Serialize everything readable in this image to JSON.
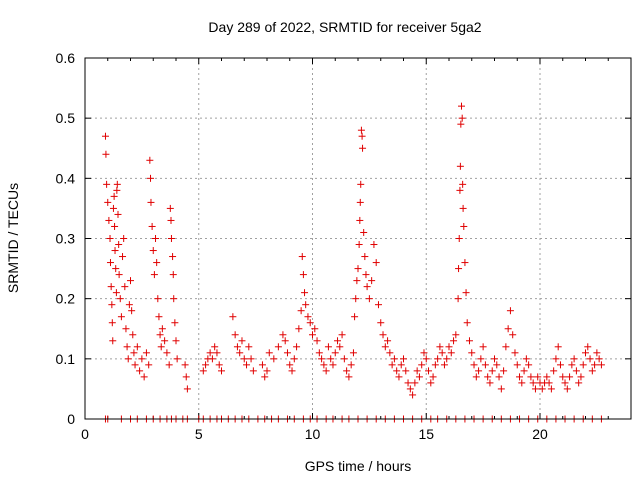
{
  "chart_data": {
    "type": "scatter",
    "title": "Day 289 of 2022, SRMTID for receiver 5ga2",
    "xlabel": "GPS time / hours",
    "ylabel": "SRMTID / TECUs",
    "xlim": [
      0,
      24
    ],
    "ylim": [
      0,
      0.6
    ],
    "x_ticks": [
      0,
      5,
      10,
      15,
      20
    ],
    "y_ticks": [
      0,
      0.1,
      0.2,
      0.3,
      0.4,
      0.5,
      0.6
    ],
    "x_tick_labels": [
      "0",
      "5",
      "10",
      "15",
      "20"
    ],
    "y_tick_labels": [
      "0",
      "0.1",
      "0.2",
      "0.3",
      "0.4",
      "0.5",
      "0.6"
    ],
    "grid": true,
    "marker": "plus",
    "color": "#e00000",
    "series": [
      {
        "name": "SRMTID",
        "points": [
          [
            0.9,
            0.47
          ],
          [
            0.92,
            0.44
          ],
          [
            0.95,
            0.39
          ],
          [
            1.0,
            0.36
          ],
          [
            1.05,
            0.33
          ],
          [
            1.1,
            0.3
          ],
          [
            1.12,
            0.26
          ],
          [
            1.15,
            0.22
          ],
          [
            1.18,
            0.19
          ],
          [
            1.2,
            0.16
          ],
          [
            1.22,
            0.13
          ],
          [
            1.25,
            0.35
          ],
          [
            1.28,
            0.37
          ],
          [
            1.3,
            0.32
          ],
          [
            1.32,
            0.28
          ],
          [
            1.35,
            0.25
          ],
          [
            1.38,
            0.21
          ],
          [
            1.4,
            0.38
          ],
          [
            1.42,
            0.39
          ],
          [
            1.45,
            0.34
          ],
          [
            1.48,
            0.29
          ],
          [
            1.5,
            0.24
          ],
          [
            1.55,
            0.2
          ],
          [
            1.6,
            0.17
          ],
          [
            1.65,
            0.27
          ],
          [
            1.7,
            0.3
          ],
          [
            1.75,
            0.22
          ],
          [
            1.8,
            0.15
          ],
          [
            1.85,
            0.12
          ],
          [
            1.9,
            0.1
          ],
          [
            1.95,
            0.19
          ],
          [
            2.0,
            0.23
          ],
          [
            2.05,
            0.18
          ],
          [
            2.1,
            0.14
          ],
          [
            2.15,
            0.11
          ],
          [
            2.2,
            0.09
          ],
          [
            2.3,
            0.12
          ],
          [
            2.4,
            0.08
          ],
          [
            2.5,
            0.1
          ],
          [
            2.6,
            0.07
          ],
          [
            2.7,
            0.11
          ],
          [
            2.8,
            0.09
          ],
          [
            2.85,
            0.43
          ],
          [
            2.88,
            0.4
          ],
          [
            2.9,
            0.36
          ],
          [
            2.95,
            0.32
          ],
          [
            3.0,
            0.28
          ],
          [
            3.05,
            0.24
          ],
          [
            3.1,
            0.3
          ],
          [
            3.15,
            0.26
          ],
          [
            3.2,
            0.2
          ],
          [
            3.25,
            0.17
          ],
          [
            3.3,
            0.14
          ],
          [
            3.35,
            0.12
          ],
          [
            3.4,
            0.15
          ],
          [
            3.5,
            0.13
          ],
          [
            3.6,
            0.11
          ],
          [
            3.7,
            0.09
          ],
          [
            3.75,
            0.35
          ],
          [
            3.78,
            0.33
          ],
          [
            3.8,
            0.3
          ],
          [
            3.85,
            0.27
          ],
          [
            3.88,
            0.24
          ],
          [
            3.9,
            0.2
          ],
          [
            3.95,
            0.16
          ],
          [
            4.0,
            0.13
          ],
          [
            4.05,
            0.1
          ],
          [
            4.4,
            0.09
          ],
          [
            4.45,
            0.07
          ],
          [
            4.5,
            0.05
          ],
          [
            5.2,
            0.08
          ],
          [
            5.3,
            0.09
          ],
          [
            5.4,
            0.1
          ],
          [
            5.5,
            0.11
          ],
          [
            5.6,
            0.1
          ],
          [
            5.7,
            0.12
          ],
          [
            5.8,
            0.11
          ],
          [
            5.9,
            0.09
          ],
          [
            6.0,
            0.08
          ],
          [
            6.5,
            0.17
          ],
          [
            6.6,
            0.14
          ],
          [
            6.7,
            0.12
          ],
          [
            6.8,
            0.11
          ],
          [
            6.9,
            0.13
          ],
          [
            7.0,
            0.1
          ],
          [
            7.1,
            0.09
          ],
          [
            7.2,
            0.12
          ],
          [
            7.3,
            0.1
          ],
          [
            7.4,
            0.08
          ],
          [
            7.8,
            0.09
          ],
          [
            7.9,
            0.07
          ],
          [
            8.0,
            0.08
          ],
          [
            8.1,
            0.11
          ],
          [
            8.3,
            0.1
          ],
          [
            8.5,
            0.12
          ],
          [
            8.7,
            0.14
          ],
          [
            8.8,
            0.13
          ],
          [
            8.9,
            0.11
          ],
          [
            9.0,
            0.09
          ],
          [
            9.1,
            0.08
          ],
          [
            9.2,
            0.1
          ],
          [
            9.3,
            0.12
          ],
          [
            9.4,
            0.15
          ],
          [
            9.5,
            0.18
          ],
          [
            9.55,
            0.27
          ],
          [
            9.6,
            0.24
          ],
          [
            9.65,
            0.21
          ],
          [
            9.7,
            0.19
          ],
          [
            9.8,
            0.17
          ],
          [
            9.9,
            0.16
          ],
          [
            10.0,
            0.14
          ],
          [
            10.1,
            0.15
          ],
          [
            10.2,
            0.13
          ],
          [
            10.3,
            0.11
          ],
          [
            10.4,
            0.1
          ],
          [
            10.5,
            0.09
          ],
          [
            10.6,
            0.08
          ],
          [
            10.7,
            0.12
          ],
          [
            10.8,
            0.1
          ],
          [
            10.9,
            0.09
          ],
          [
            11.0,
            0.11
          ],
          [
            11.1,
            0.13
          ],
          [
            11.2,
            0.12
          ],
          [
            11.3,
            0.14
          ],
          [
            11.4,
            0.1
          ],
          [
            11.5,
            0.08
          ],
          [
            11.6,
            0.07
          ],
          [
            11.7,
            0.09
          ],
          [
            11.8,
            0.11
          ],
          [
            11.85,
            0.17
          ],
          [
            11.9,
            0.2
          ],
          [
            11.95,
            0.23
          ],
          [
            12.0,
            0.25
          ],
          [
            12.05,
            0.29
          ],
          [
            12.08,
            0.33
          ],
          [
            12.1,
            0.36
          ],
          [
            12.12,
            0.39
          ],
          [
            12.15,
            0.48
          ],
          [
            12.18,
            0.47
          ],
          [
            12.2,
            0.45
          ],
          [
            12.25,
            0.31
          ],
          [
            12.3,
            0.27
          ],
          [
            12.35,
            0.24
          ],
          [
            12.4,
            0.22
          ],
          [
            12.5,
            0.2
          ],
          [
            12.6,
            0.23
          ],
          [
            12.7,
            0.29
          ],
          [
            12.8,
            0.26
          ],
          [
            12.9,
            0.19
          ],
          [
            13.0,
            0.16
          ],
          [
            13.1,
            0.14
          ],
          [
            13.2,
            0.12
          ],
          [
            13.3,
            0.13
          ],
          [
            13.4,
            0.11
          ],
          [
            13.5,
            0.09
          ],
          [
            13.6,
            0.1
          ],
          [
            13.7,
            0.08
          ],
          [
            13.8,
            0.07
          ],
          [
            13.9,
            0.09
          ],
          [
            14.0,
            0.1
          ],
          [
            14.1,
            0.08
          ],
          [
            14.2,
            0.06
          ],
          [
            14.3,
            0.05
          ],
          [
            14.4,
            0.04
          ],
          [
            14.5,
            0.06
          ],
          [
            14.6,
            0.08
          ],
          [
            14.7,
            0.07
          ],
          [
            14.8,
            0.09
          ],
          [
            14.9,
            0.11
          ],
          [
            15.0,
            0.1
          ],
          [
            15.1,
            0.08
          ],
          [
            15.2,
            0.06
          ],
          [
            15.3,
            0.07
          ],
          [
            15.4,
            0.09
          ],
          [
            15.5,
            0.1
          ],
          [
            15.6,
            0.12
          ],
          [
            15.7,
            0.11
          ],
          [
            15.8,
            0.09
          ],
          [
            15.9,
            0.1
          ],
          [
            16.0,
            0.12
          ],
          [
            16.1,
            0.11
          ],
          [
            16.2,
            0.13
          ],
          [
            16.3,
            0.14
          ],
          [
            16.4,
            0.2
          ],
          [
            16.42,
            0.25
          ],
          [
            16.45,
            0.3
          ],
          [
            16.48,
            0.38
          ],
          [
            16.5,
            0.42
          ],
          [
            16.52,
            0.49
          ],
          [
            16.55,
            0.52
          ],
          [
            16.58,
            0.5
          ],
          [
            16.6,
            0.39
          ],
          [
            16.62,
            0.35
          ],
          [
            16.65,
            0.32
          ],
          [
            16.7,
            0.26
          ],
          [
            16.75,
            0.21
          ],
          [
            16.8,
            0.16
          ],
          [
            16.9,
            0.13
          ],
          [
            17.0,
            0.11
          ],
          [
            17.1,
            0.09
          ],
          [
            17.2,
            0.07
          ],
          [
            17.3,
            0.08
          ],
          [
            17.4,
            0.1
          ],
          [
            17.5,
            0.12
          ],
          [
            17.6,
            0.09
          ],
          [
            17.7,
            0.07
          ],
          [
            17.8,
            0.06
          ],
          [
            17.9,
            0.08
          ],
          [
            18.0,
            0.1
          ],
          [
            18.1,
            0.09
          ],
          [
            18.2,
            0.07
          ],
          [
            18.3,
            0.05
          ],
          [
            18.4,
            0.08
          ],
          [
            18.5,
            0.12
          ],
          [
            18.6,
            0.15
          ],
          [
            18.7,
            0.18
          ],
          [
            18.8,
            0.14
          ],
          [
            18.9,
            0.11
          ],
          [
            19.0,
            0.09
          ],
          [
            19.1,
            0.07
          ],
          [
            19.2,
            0.06
          ],
          [
            19.3,
            0.08
          ],
          [
            19.4,
            0.1
          ],
          [
            19.5,
            0.09
          ],
          [
            19.6,
            0.07
          ],
          [
            19.7,
            0.06
          ],
          [
            19.8,
            0.05
          ],
          [
            19.9,
            0.07
          ],
          [
            20.0,
            0.06
          ],
          [
            20.1,
            0.05
          ],
          [
            20.2,
            0.06
          ],
          [
            20.3,
            0.07
          ],
          [
            20.4,
            0.06
          ],
          [
            20.5,
            0.05
          ],
          [
            20.6,
            0.08
          ],
          [
            20.7,
            0.1
          ],
          [
            20.8,
            0.12
          ],
          [
            20.9,
            0.09
          ],
          [
            21.0,
            0.07
          ],
          [
            21.1,
            0.06
          ],
          [
            21.2,
            0.05
          ],
          [
            21.3,
            0.07
          ],
          [
            21.4,
            0.09
          ],
          [
            21.5,
            0.1
          ],
          [
            21.6,
            0.08
          ],
          [
            21.7,
            0.06
          ],
          [
            21.8,
            0.07
          ],
          [
            21.9,
            0.09
          ],
          [
            22.0,
            0.11
          ],
          [
            22.1,
            0.12
          ],
          [
            22.2,
            0.1
          ],
          [
            22.3,
            0.08
          ],
          [
            22.4,
            0.09
          ],
          [
            22.5,
            0.11
          ],
          [
            22.6,
            0.1
          ],
          [
            22.7,
            0.09
          ],
          [
            0.9,
            0.0
          ],
          [
            1.0,
            0.0
          ],
          [
            1.6,
            0.0
          ],
          [
            2.0,
            0.0
          ],
          [
            2.3,
            0.0
          ],
          [
            2.7,
            0.0
          ],
          [
            3.0,
            0.0
          ],
          [
            3.3,
            0.0
          ],
          [
            3.6,
            0.0
          ],
          [
            3.8,
            0.0
          ],
          [
            4.0,
            0.0
          ],
          [
            4.3,
            0.0
          ],
          [
            4.5,
            0.0
          ],
          [
            5.0,
            0.0
          ],
          [
            5.2,
            0.0
          ],
          [
            5.5,
            0.0
          ],
          [
            5.8,
            0.0
          ],
          [
            6.0,
            0.0
          ],
          [
            6.3,
            0.0
          ],
          [
            6.6,
            0.0
          ],
          [
            6.9,
            0.0
          ],
          [
            7.2,
            0.0
          ],
          [
            7.6,
            0.0
          ],
          [
            7.9,
            0.0
          ],
          [
            8.2,
            0.0
          ],
          [
            8.5,
            0.0
          ],
          [
            8.9,
            0.0
          ],
          [
            9.2,
            0.0
          ],
          [
            9.6,
            0.0
          ],
          [
            9.9,
            0.0
          ],
          [
            10.2,
            0.0
          ],
          [
            10.6,
            0.0
          ],
          [
            10.9,
            0.0
          ],
          [
            11.3,
            0.0
          ],
          [
            11.6,
            0.0
          ],
          [
            12.0,
            0.0
          ],
          [
            12.4,
            0.0
          ],
          [
            12.8,
            0.0
          ],
          [
            13.2,
            0.0
          ],
          [
            13.6,
            0.0
          ],
          [
            14.0,
            0.0
          ],
          [
            14.4,
            0.0
          ],
          [
            14.8,
            0.0
          ],
          [
            15.2,
            0.0
          ],
          [
            15.5,
            0.0
          ],
          [
            15.9,
            0.0
          ],
          [
            16.3,
            0.0
          ],
          [
            16.7,
            0.0
          ],
          [
            17.1,
            0.0
          ],
          [
            17.5,
            0.0
          ],
          [
            17.9,
            0.0
          ],
          [
            18.3,
            0.0
          ],
          [
            18.7,
            0.0
          ],
          [
            19.1,
            0.0
          ],
          [
            19.5,
            0.0
          ],
          [
            19.9,
            0.0
          ],
          [
            20.3,
            0.0
          ],
          [
            20.7,
            0.0
          ],
          [
            21.1,
            0.0
          ],
          [
            21.5,
            0.0
          ],
          [
            21.9,
            0.0
          ],
          [
            22.3,
            0.0
          ],
          [
            22.7,
            0.0
          ]
        ]
      }
    ]
  }
}
